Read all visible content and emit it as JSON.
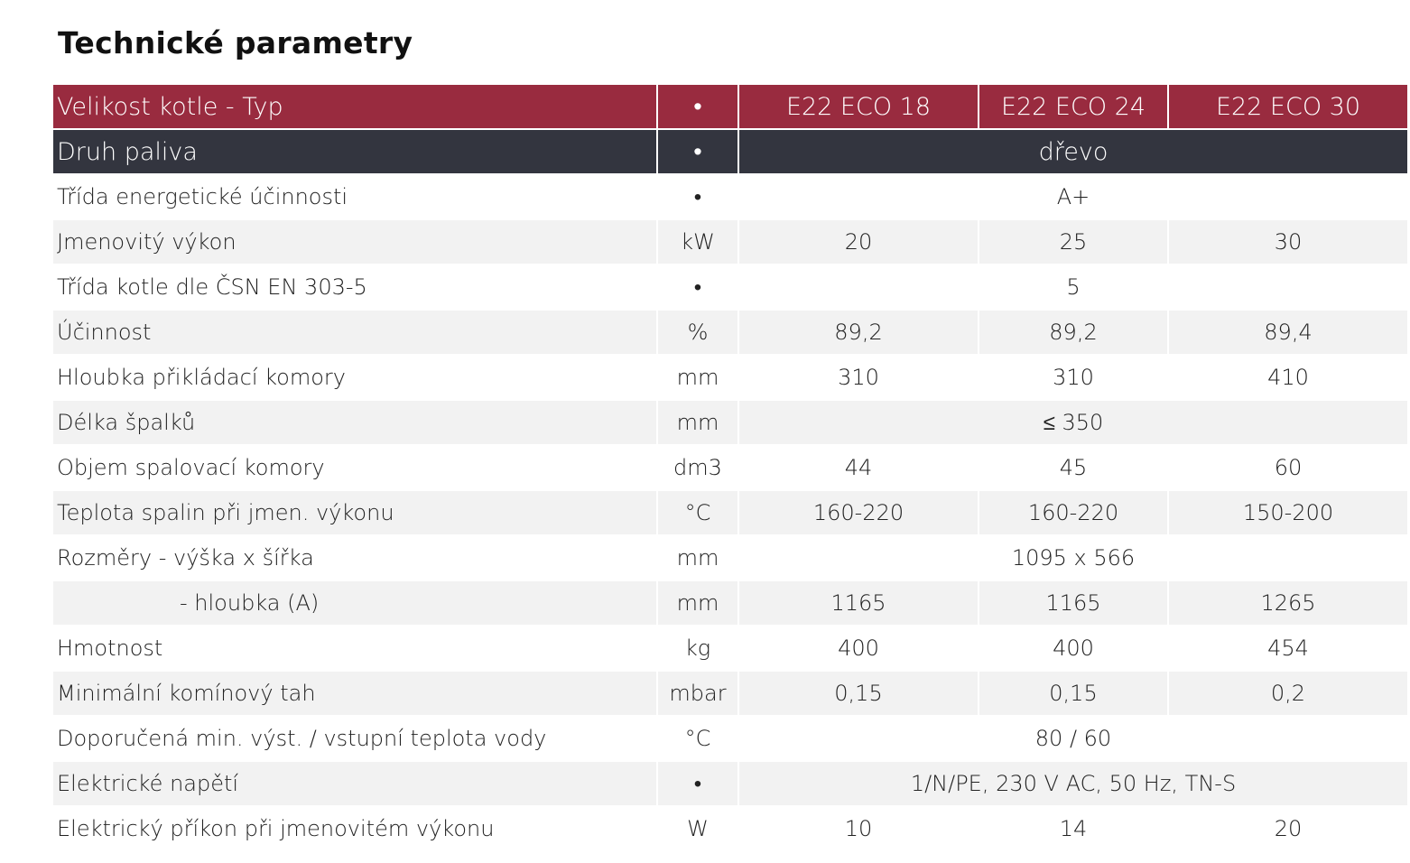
{
  "title": "Technické parametry",
  "header": {
    "label": "Velikost kotle - Typ",
    "unit": "•",
    "models": [
      "E22 ECO 18",
      "E22 ECO 24",
      "E22 ECO 30"
    ]
  },
  "fuel": {
    "label": "Druh paliva",
    "unit": "•",
    "value": "dřevo"
  },
  "rows": [
    {
      "label": "Třída energetické účinnosti",
      "unit": "•",
      "merged": "A+"
    },
    {
      "label": "Jmenovitý výkon",
      "unit": "kW",
      "values": [
        "20",
        "25",
        "30"
      ]
    },
    {
      "label": "Třída kotle dle ČSN EN 303-5",
      "unit": "•",
      "merged": "5"
    },
    {
      "label": "Účinnost",
      "unit": "%",
      "values": [
        "89,2",
        "89,2",
        "89,4"
      ]
    },
    {
      "label": "Hloubka přikládací komory",
      "unit": "mm",
      "values": [
        "310",
        "310",
        "410"
      ]
    },
    {
      "label": "Délka špalků",
      "unit": "mm",
      "merged": "≤ 350"
    },
    {
      "label": "Objem spalovací komory",
      "unit": "dm3",
      "values": [
        "44",
        "45",
        "60"
      ]
    },
    {
      "label": "Teplota spalin při jmen. výkonu",
      "unit": "°C",
      "values": [
        "160-220",
        "160-220",
        "150-200"
      ]
    },
    {
      "label": "Rozměry - výška x šířka",
      "unit": "mm",
      "merged": "1095 x 566"
    },
    {
      "label": "- hloubka (A)",
      "unit": "mm",
      "values": [
        "1165",
        "1165",
        "1265"
      ],
      "indent": true
    },
    {
      "label": "Hmotnost",
      "unit": "kg",
      "values": [
        "400",
        "400",
        "454"
      ]
    },
    {
      "label": "Minimální komínový tah",
      "unit": "mbar",
      "values": [
        "0,15",
        "0,15",
        "0,2"
      ]
    },
    {
      "label": "Doporučená min. výst. / vstupní teplota vody",
      "unit": "°C",
      "merged": "80 / 60"
    },
    {
      "label": "Elektrické napětí",
      "unit": "•",
      "merged": "1/N/PE, 230 V AC, 50 Hz, TN-S"
    },
    {
      "label": "Elektrický příkon při jmenovitém výkonu",
      "unit": "W",
      "values": [
        "10",
        "14",
        "20"
      ]
    }
  ]
}
